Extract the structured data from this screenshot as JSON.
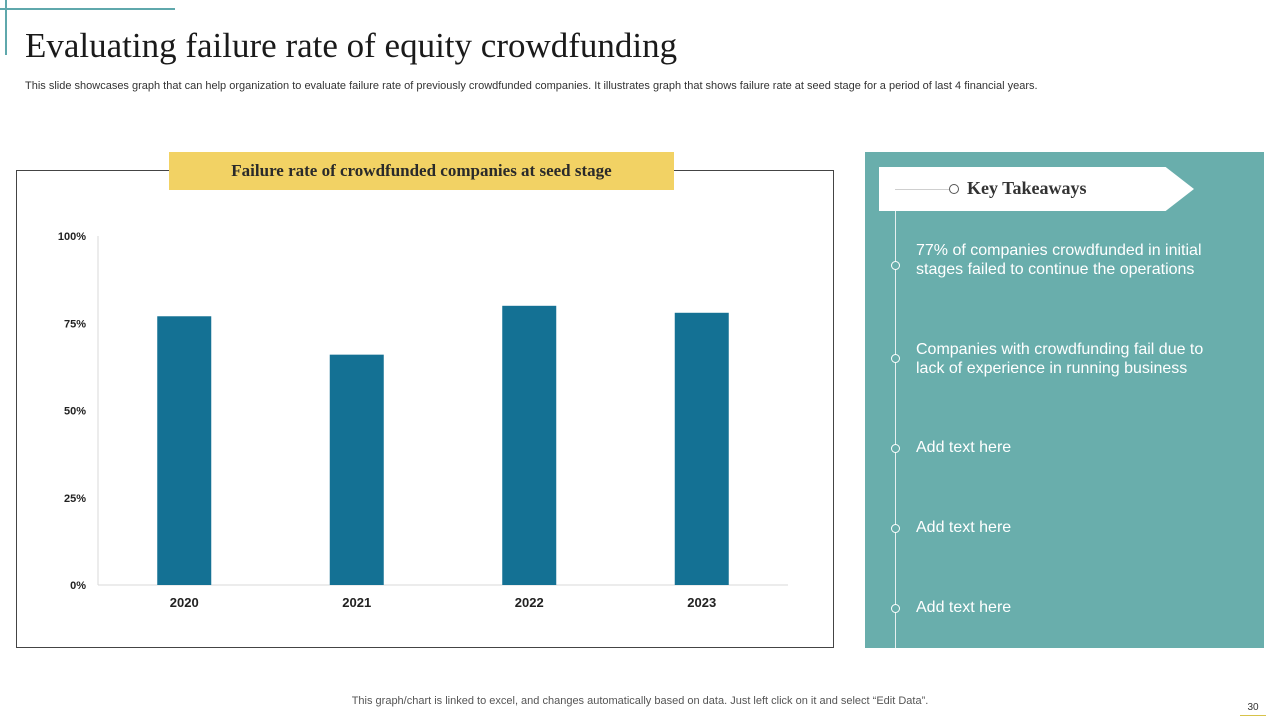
{
  "slide": {
    "title": "Evaluating  failure rate of equity crowdfunding",
    "subtitle": "This slide showcases graph that can help organization to evaluate failure rate of previously crowdfunded companies. It illustrates graph that shows failure rate at seed stage for a period of last 4 financial years.",
    "footer_note": "This graph/chart is linked to excel,  and changes automatically based on data. Just left click on it and select “Edit Data”.",
    "page_number": "30"
  },
  "chart_data": {
    "type": "bar",
    "title": "Failure rate of crowdfunded companies at seed stage",
    "categories": [
      "2020",
      "2021",
      "2022",
      "2023"
    ],
    "values": [
      77,
      66,
      80,
      78
    ],
    "unit": "%",
    "yticks": [
      "0%",
      "25%",
      "50%",
      "75%",
      "100%"
    ],
    "ylim": [
      0,
      100
    ],
    "xlabel": "",
    "ylabel": "",
    "grid": false,
    "bar_color": "#147194"
  },
  "takeaways": {
    "title": "Key Takeaways",
    "items": [
      "77% of companies crowdfunded in initial stages  failed to continue the operations",
      "Companies with crowdfunding fail due to lack of experience in running business",
      "Add text here",
      "Add text here",
      "Add text here"
    ]
  },
  "colors": {
    "panel": "#69aeac",
    "banner": "#f2d264",
    "accent": "#5fa8ac"
  }
}
